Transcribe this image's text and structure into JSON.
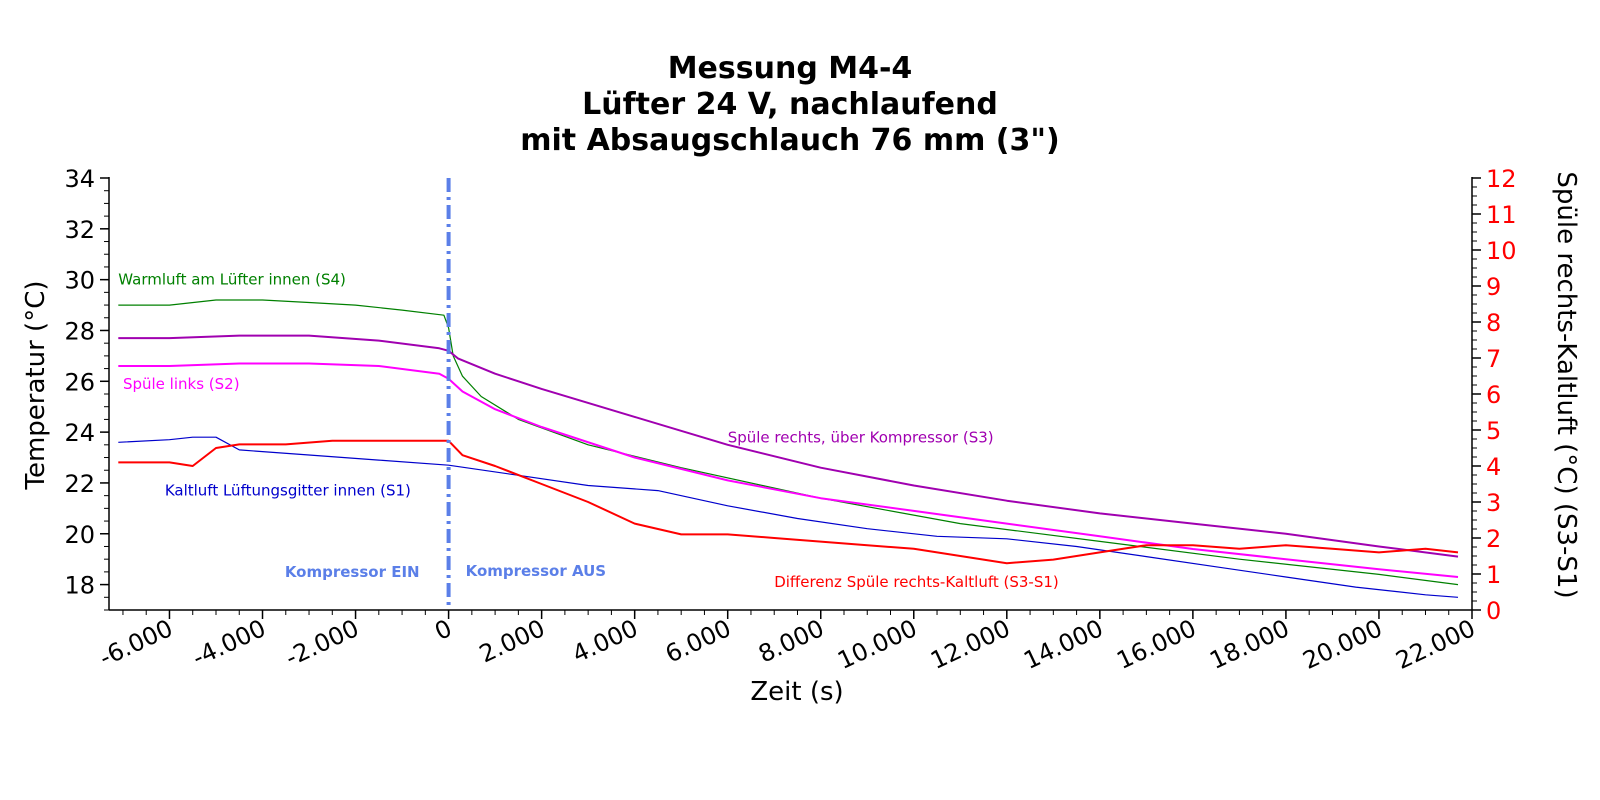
{
  "chart_data": {
    "type": "line",
    "title_lines": [
      "Messung M4-4",
      "Lüfter 24 V, nachlaufend",
      "mit Absaugschlauch 76 mm (3\")"
    ],
    "xlabel": "Zeit (s)",
    "ylabel": "Temperatur (°C)",
    "y2label": "Spüle rechts-Kaltluft (°C) (S3-S1)",
    "xlim": [
      -7300,
      22000
    ],
    "ylim": [
      17,
      34
    ],
    "y2lim": [
      0,
      12
    ],
    "x_ticks": [
      -6000,
      -4000,
      -2000,
      0,
      2000,
      4000,
      6000,
      8000,
      10000,
      12000,
      14000,
      16000,
      18000,
      20000,
      22000
    ],
    "x_tick_labels": [
      "-6.000",
      "-4.000",
      "-2.000",
      "0",
      "2.000",
      "4.000",
      "6.000",
      "8.000",
      "10.000",
      "12.000",
      "14.000",
      "16.000",
      "18.000",
      "20.000",
      "22.000"
    ],
    "y_ticks": [
      18,
      20,
      22,
      24,
      26,
      28,
      30,
      32,
      34
    ],
    "y_tick_labels": [
      "18",
      "20",
      "22",
      "24",
      "26",
      "28",
      "30",
      "32",
      "34"
    ],
    "y2_ticks": [
      0,
      1,
      2,
      3,
      4,
      5,
      6,
      7,
      8,
      9,
      10,
      11,
      12
    ],
    "y2_tick_labels": [
      "0",
      "1",
      "2",
      "3",
      "4",
      "5",
      "6",
      "7",
      "8",
      "9",
      "10",
      "11",
      "12"
    ],
    "grid": false,
    "vline": {
      "x": 0,
      "color": "#5b7fe8"
    },
    "vline_labels": {
      "left": "Kompressor EIN",
      "right": "Kompressor AUS"
    },
    "series": [
      {
        "name": "Warmluft am Lüfter innen (S4)",
        "color": "#008000",
        "width": 1.2,
        "axis": "left",
        "x": [
          -7100,
          -6000,
          -5000,
          -4000,
          -3000,
          -2000,
          -1000,
          -100,
          0,
          100,
          300,
          700,
          1500,
          3000,
          5000,
          8000,
          11000,
          14000,
          17000,
          20000,
          21700
        ],
        "y": [
          29.0,
          29.0,
          29.2,
          29.2,
          29.1,
          29.0,
          28.8,
          28.6,
          28.1,
          27.0,
          26.2,
          25.4,
          24.5,
          23.5,
          22.6,
          21.4,
          20.4,
          19.7,
          19.0,
          18.4,
          18.0
        ]
      },
      {
        "name": "Spüle rechts, über Kompressor (S3)",
        "color": "#a000b0",
        "width": 2,
        "axis": "left",
        "x": [
          -7100,
          -6000,
          -4500,
          -3000,
          -1500,
          -200,
          0,
          200,
          1000,
          2000,
          4000,
          6000,
          8000,
          10000,
          12000,
          14000,
          16000,
          18000,
          20000,
          21700
        ],
        "y": [
          27.7,
          27.7,
          27.8,
          27.8,
          27.6,
          27.3,
          27.2,
          26.9,
          26.3,
          25.7,
          24.6,
          23.5,
          22.6,
          21.9,
          21.3,
          20.8,
          20.4,
          20.0,
          19.5,
          19.1
        ]
      },
      {
        "name": "Spüle links (S2)",
        "color": "#ff00ff",
        "width": 2,
        "axis": "left",
        "x": [
          -7100,
          -6000,
          -4500,
          -3000,
          -1500,
          -200,
          0,
          300,
          1000,
          2000,
          4000,
          6000,
          8000,
          10000,
          12000,
          14000,
          16000,
          18000,
          20000,
          21700
        ],
        "y": [
          26.6,
          26.6,
          26.7,
          26.7,
          26.6,
          26.3,
          26.1,
          25.6,
          24.9,
          24.2,
          23.0,
          22.1,
          21.4,
          20.9,
          20.4,
          19.9,
          19.4,
          19.0,
          18.6,
          18.3
        ]
      },
      {
        "name": "Kaltluft Lüftungsgitter innen (S1)",
        "color": "#0000cc",
        "width": 1.2,
        "axis": "left",
        "x": [
          -7100,
          -6000,
          -5500,
          -5000,
          -4500,
          -3000,
          -1500,
          0,
          1500,
          3000,
          4500,
          6000,
          7500,
          9000,
          10500,
          12000,
          13500,
          15000,
          16500,
          18000,
          19500,
          21000,
          21700
        ],
        "y": [
          23.6,
          23.7,
          23.8,
          23.8,
          23.3,
          23.1,
          22.9,
          22.7,
          22.3,
          21.9,
          21.7,
          21.1,
          20.6,
          20.2,
          19.9,
          19.8,
          19.5,
          19.1,
          18.7,
          18.3,
          17.9,
          17.6,
          17.5
        ]
      },
      {
        "name": "Differenz Spüle rechts-Kaltluft (S3-S1)",
        "color": "#ff0000",
        "width": 2,
        "axis": "right",
        "x": [
          -7100,
          -6000,
          -5500,
          -5000,
          -4500,
          -3500,
          -2500,
          -1500,
          -500,
          0,
          300,
          1000,
          2000,
          3000,
          4000,
          5000,
          6000,
          7000,
          8000,
          9000,
          10000,
          11000,
          12000,
          13000,
          14000,
          15000,
          16000,
          17000,
          18000,
          19000,
          20000,
          21000,
          21700
        ],
        "y": [
          4.1,
          4.1,
          4.0,
          4.5,
          4.6,
          4.6,
          4.7,
          4.7,
          4.7,
          4.7,
          4.3,
          4.0,
          3.5,
          3.0,
          2.4,
          2.1,
          2.1,
          2.0,
          1.9,
          1.8,
          1.7,
          1.5,
          1.3,
          1.4,
          1.6,
          1.8,
          1.8,
          1.7,
          1.8,
          1.7,
          1.6,
          1.7,
          1.6
        ]
      }
    ],
    "annotations": [
      {
        "text": "Warmluft am Lüfter innen (S4)",
        "x": -7100,
        "y": 29.8,
        "axis": "left",
        "color": "#008000"
      },
      {
        "text": "Spüle links (S2)",
        "x": -7000,
        "y": 25.7,
        "axis": "left",
        "color": "#ff00ff"
      },
      {
        "text": "Kaltluft Lüftungsgitter innen (S1)",
        "x": -6100,
        "y": 21.5,
        "axis": "left",
        "color": "#0000cc"
      },
      {
        "text": "Spüle rechts, über Kompressor (S3)",
        "x": 6000,
        "y": 23.6,
        "axis": "left",
        "color": "#a000b0"
      },
      {
        "text": "Differenz Spüle rechts-Kaltluft (S3-S1)",
        "x": 7000,
        "y": 17.9,
        "axis": "left",
        "color": "#ff0000"
      }
    ]
  }
}
